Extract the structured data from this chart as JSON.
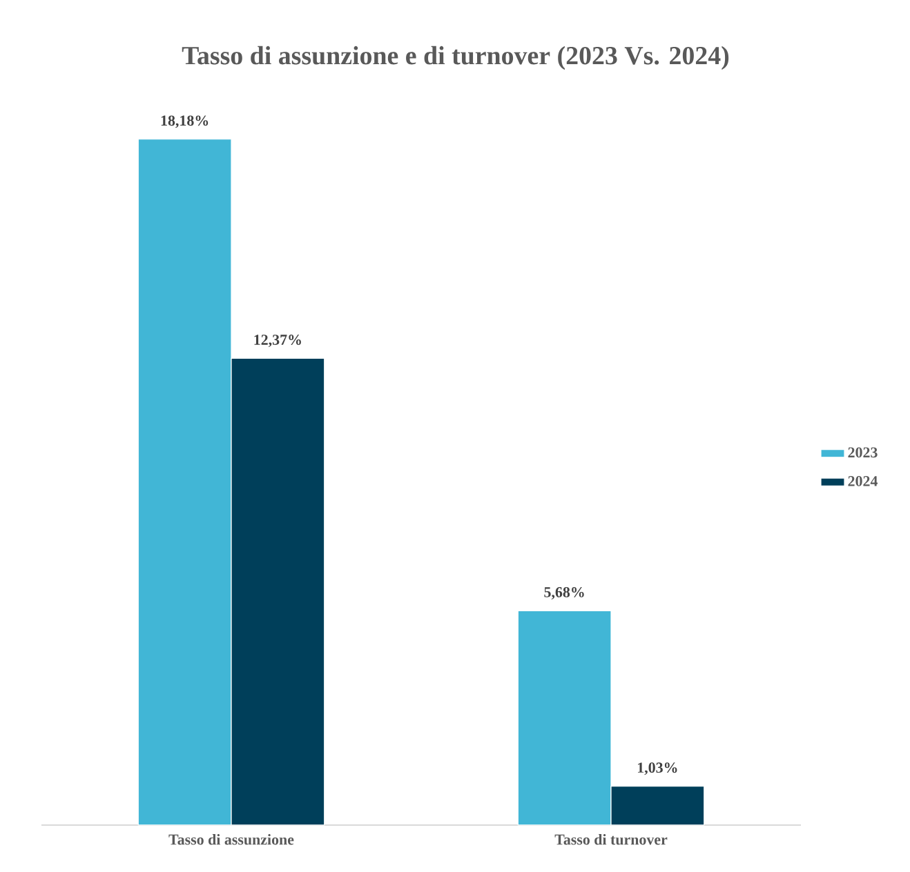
{
  "chart_data": {
    "type": "bar",
    "title": "Tasso di assunzione e di turnover (2023 Vs. 2024)",
    "categories": [
      "Tasso di assunzione",
      "Tasso di turnover"
    ],
    "series": [
      {
        "name": "2023",
        "color": "#41b6d6",
        "values": [
          18.18,
          5.68
        ],
        "value_labels": [
          "18,18%",
          "5,68%"
        ]
      },
      {
        "name": "2024",
        "color": "#003f5a",
        "values": [
          12.37,
          1.03
        ],
        "value_labels": [
          "12,37%",
          "1,03%"
        ]
      }
    ],
    "legend": "right"
  }
}
